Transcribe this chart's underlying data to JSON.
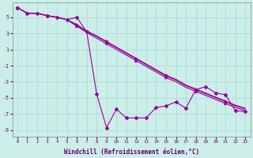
{
  "xlabel": "Windchill (Refroidissement éolien,°C)",
  "background_color": "#cceee8",
  "grid_color": "#aadddd",
  "line_color": "#990099",
  "xlim_min": -0.5,
  "xlim_max": 23.5,
  "ylim_min": -9.8,
  "ylim_max": 6.8,
  "xticks": [
    0,
    1,
    2,
    3,
    4,
    5,
    6,
    7,
    8,
    9,
    10,
    11,
    12,
    13,
    14,
    15,
    16,
    17,
    18,
    19,
    20,
    21,
    22,
    23
  ],
  "yticks": [
    -9,
    -7,
    -5,
    -3,
    -1,
    1,
    3,
    5
  ],
  "linear1_x": [
    0,
    1,
    2,
    3,
    4,
    5,
    6,
    7,
    8,
    9,
    10,
    11,
    12,
    13,
    14,
    15,
    16,
    17,
    18,
    19,
    20,
    21,
    22,
    23
  ],
  "linear1_y": [
    6.2,
    5.5,
    5.5,
    5.2,
    5.0,
    4.7,
    3.9,
    3.1,
    2.4,
    1.7,
    1.0,
    0.3,
    -0.4,
    -1.1,
    -1.8,
    -2.5,
    -3.0,
    -3.7,
    -4.2,
    -4.7,
    -5.2,
    -5.7,
    -6.2,
    -6.6
  ],
  "linear2_y": [
    6.2,
    5.5,
    5.5,
    5.2,
    5.0,
    4.7,
    4.0,
    3.2,
    2.6,
    1.9,
    1.2,
    0.5,
    -0.2,
    -0.9,
    -1.6,
    -2.3,
    -2.8,
    -3.5,
    -4.0,
    -4.5,
    -5.0,
    -5.5,
    -6.0,
    -6.4
  ],
  "linear3_y": [
    6.2,
    5.5,
    5.5,
    5.2,
    5.0,
    4.7,
    4.1,
    3.3,
    2.7,
    2.0,
    1.3,
    0.6,
    -0.1,
    -0.8,
    -1.5,
    -2.2,
    -2.7,
    -3.4,
    -3.9,
    -4.4,
    -4.9,
    -5.4,
    -5.9,
    -6.3
  ],
  "jagged_x": [
    0,
    1,
    2,
    3,
    4,
    5,
    6,
    7,
    8,
    9,
    10,
    11,
    12,
    13,
    14,
    15,
    16,
    17,
    18,
    19,
    20,
    21,
    22,
    23
  ],
  "jagged_y": [
    6.2,
    5.5,
    5.5,
    5.2,
    5.0,
    4.7,
    5.0,
    3.2,
    -4.5,
    -8.7,
    -6.4,
    -7.5,
    -7.5,
    -7.5,
    -6.2,
    -6.0,
    -5.5,
    -6.3,
    -4.0,
    -3.6,
    -4.4,
    -4.6,
    -6.6,
    -6.7
  ]
}
